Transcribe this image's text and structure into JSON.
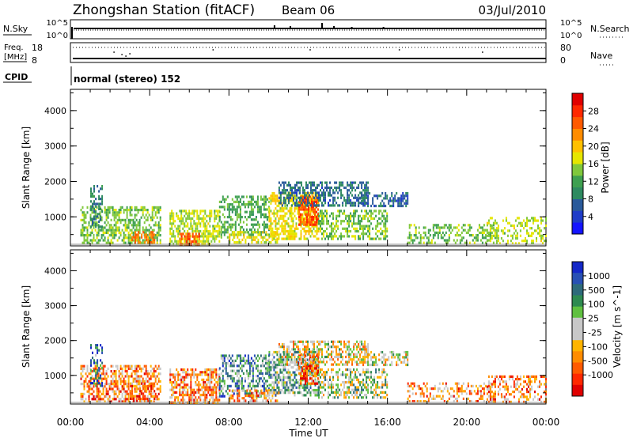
{
  "header": {
    "title": "Zhongshan Station (fitACF)",
    "beam": "Beam 06",
    "date": "03/Jul/2010"
  },
  "status_panels": {
    "nsky": {
      "label": "N.Sky",
      "left_top_tick": "10^5",
      "left_bottom_tick": "10^0",
      "right_label": "N.Search",
      "right_top_tick": "10^5",
      "right_bottom_tick": "10^0"
    },
    "freq": {
      "label_line1": "Freq.",
      "label_line2": "[MHz]",
      "left_top_tick": "18",
      "left_bottom_tick": "8",
      "right_label": "Nave",
      "right_top_tick": "80",
      "right_bottom_tick": "0"
    },
    "cpid": {
      "label": "CPID",
      "value": "normal (stereo) 152"
    }
  },
  "chart_data": [
    {
      "type": "heatmap",
      "name": "power",
      "ylabel": "Slant Range [km]",
      "ylim": [
        180,
        4600
      ],
      "yticks": [
        "1000",
        "2000",
        "3000",
        "4000"
      ],
      "colorbar": {
        "label": "Power [dB]",
        "range": [
          0,
          32
        ],
        "tick_labels": [
          "4",
          "8",
          "12",
          "16",
          "20",
          "24",
          "28"
        ],
        "colors": [
          "#1414ff",
          "#1e3cc8",
          "#2a5a9a",
          "#2e8a60",
          "#3ea050",
          "#80c83c",
          "#e6e600",
          "#ffc000",
          "#ff8c00",
          "#ff5a00",
          "#ff2800",
          "#e00000"
        ]
      },
      "scatter_regions": [
        {
          "t": [
            0.5,
            4.5
          ],
          "r": [
            250,
            1300
          ],
          "density": 0.55,
          "level_mean": 14
        },
        {
          "t": [
            1.0,
            1.6
          ],
          "r": [
            700,
            1900
          ],
          "density": 0.4,
          "level_mean": 8
        },
        {
          "t": [
            3.0,
            4.2
          ],
          "r": [
            250,
            600
          ],
          "density": 0.6,
          "level_mean": 24
        },
        {
          "t": [
            5.0,
            7.5
          ],
          "r": [
            250,
            1200
          ],
          "density": 0.6,
          "level_mean": 16
        },
        {
          "t": [
            5.5,
            6.5
          ],
          "r": [
            250,
            550
          ],
          "density": 0.7,
          "level_mean": 26
        },
        {
          "t": [
            7.5,
            10.0
          ],
          "r": [
            400,
            1600
          ],
          "density": 0.5,
          "level_mean": 12
        },
        {
          "t": [
            8.0,
            10.5
          ],
          "r": [
            250,
            600
          ],
          "density": 0.5,
          "level_mean": 18
        },
        {
          "t": [
            10.0,
            12.5
          ],
          "r": [
            400,
            1700
          ],
          "density": 0.6,
          "level_mean": 18
        },
        {
          "t": [
            11.5,
            12.5
          ],
          "r": [
            800,
            1600
          ],
          "density": 0.7,
          "level_mean": 27
        },
        {
          "t": [
            10.5,
            15.0
          ],
          "r": [
            1300,
            2000
          ],
          "density": 0.55,
          "level_mean": 7
        },
        {
          "t": [
            12.5,
            16.0
          ],
          "r": [
            350,
            1200
          ],
          "density": 0.5,
          "level_mean": 14
        },
        {
          "t": [
            14.5,
            17.0
          ],
          "r": [
            1300,
            1700
          ],
          "density": 0.45,
          "level_mean": 6
        },
        {
          "t": [
            17.0,
            21.5
          ],
          "r": [
            250,
            800
          ],
          "density": 0.4,
          "level_mean": 14
        },
        {
          "t": [
            21.0,
            24.0
          ],
          "r": [
            250,
            1000
          ],
          "density": 0.4,
          "level_mean": 16
        }
      ]
    },
    {
      "type": "heatmap",
      "name": "velocity",
      "ylabel": "Slant Range [km]",
      "xlabel": "Time UT",
      "ylim": [
        180,
        4600
      ],
      "xlim": [
        0,
        24
      ],
      "yticks": [
        "1000",
        "2000",
        "3000",
        "4000"
      ],
      "xticks": [
        "00:00",
        "04:00",
        "08:00",
        "12:00",
        "16:00",
        "20:00",
        "00:00"
      ],
      "colorbar": {
        "label": "Velocity [m s^-1]",
        "tick_labels": [
          "1000",
          "500",
          "100",
          "25",
          "-25",
          "-100",
          "-500",
          "-1000"
        ],
        "colors": [
          "#1428c8",
          "#2850b4",
          "#2e6a7a",
          "#2e8a50",
          "#60c040",
          "#c8c8c8",
          "#c8c8c8",
          "#ffb400",
          "#ff8c00",
          "#ff5a00",
          "#ff2800",
          "#e00000"
        ]
      },
      "scatter_regions": [
        {
          "t": [
            0.5,
            4.5
          ],
          "r": [
            250,
            1300
          ],
          "density": 0.55,
          "level_mean": 8
        },
        {
          "t": [
            1.0,
            1.6
          ],
          "r": [
            700,
            1900
          ],
          "density": 0.4,
          "level_mean": 2
        },
        {
          "t": [
            3.0,
            4.2
          ],
          "r": [
            250,
            800
          ],
          "density": 0.6,
          "level_mean": 9
        },
        {
          "t": [
            5.0,
            7.5
          ],
          "r": [
            250,
            1200
          ],
          "density": 0.6,
          "level_mean": 8
        },
        {
          "t": [
            7.5,
            10.0
          ],
          "r": [
            400,
            1600
          ],
          "density": 0.5,
          "level_mean": 3
        },
        {
          "t": [
            8.0,
            10.5
          ],
          "r": [
            250,
            600
          ],
          "density": 0.5,
          "level_mean": 8
        },
        {
          "t": [
            10.0,
            12.5
          ],
          "r": [
            400,
            1700
          ],
          "density": 0.6,
          "level_mean": 4
        },
        {
          "t": [
            11.5,
            12.5
          ],
          "r": [
            800,
            1600
          ],
          "density": 0.7,
          "level_mean": 9
        },
        {
          "t": [
            10.5,
            15.0
          ],
          "r": [
            1300,
            2000
          ],
          "density": 0.55,
          "level_mean": 6
        },
        {
          "t": [
            12.5,
            16.0
          ],
          "r": [
            350,
            1200
          ],
          "density": 0.5,
          "level_mean": 5
        },
        {
          "t": [
            14.5,
            17.0
          ],
          "r": [
            1300,
            1700
          ],
          "density": 0.45,
          "level_mean": 6
        },
        {
          "t": [
            17.0,
            21.5
          ],
          "r": [
            250,
            800
          ],
          "density": 0.4,
          "level_mean": 8
        },
        {
          "t": [
            21.0,
            24.0
          ],
          "r": [
            250,
            1000
          ],
          "density": 0.4,
          "level_mean": 8
        }
      ]
    }
  ]
}
